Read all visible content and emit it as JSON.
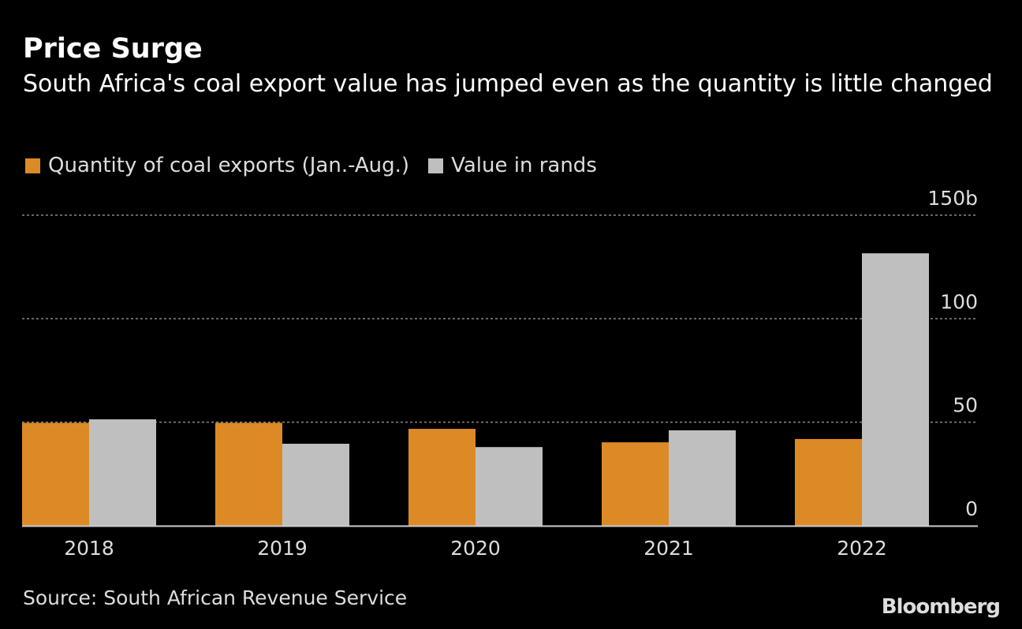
{
  "title": "Price Surge",
  "subtitle": "South Africa's coal export value has jumped even as the quantity is little changed",
  "source": "Source: South African Revenue Service",
  "logo": "Bloomberg",
  "chart_data": {
    "type": "bar",
    "categories": [
      "2018",
      "2019",
      "2020",
      "2021",
      "2022"
    ],
    "series": [
      {
        "name": "Quantity of coal exports (Jan.-Aug.)",
        "color": "#dc8a26",
        "values": [
          49.7,
          49.7,
          46.8,
          40.3,
          41.9
        ]
      },
      {
        "name": "Value in rands",
        "color": "#bfbfbf",
        "values": [
          51.4,
          39.6,
          38.0,
          46.1,
          131.6
        ]
      }
    ],
    "ylim": [
      0,
      150
    ],
    "yticks": [
      0,
      50,
      100,
      150
    ],
    "ytick_labels": [
      "0",
      "50",
      "100",
      "150b"
    ],
    "y_axis_side": "right",
    "grid": true,
    "legend_position": "top-left"
  }
}
